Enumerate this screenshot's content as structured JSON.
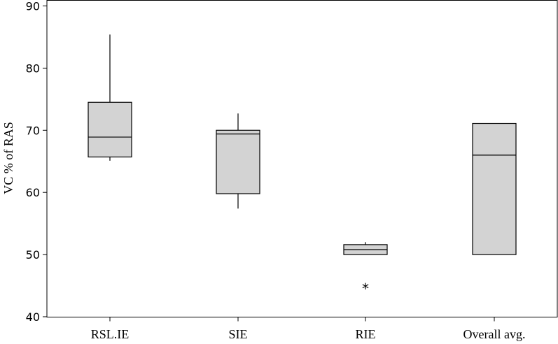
{
  "chart_data": {
    "type": "boxplot",
    "title": "",
    "xlabel": "",
    "ylabel": "VC % of RAS",
    "ylim": [
      40,
      90
    ],
    "yticks": [
      40,
      50,
      60,
      70,
      80,
      90
    ],
    "grid": false,
    "box_fill": "#d3d3d3",
    "categories": [
      "RSL.IE",
      "SIE",
      "RIE",
      "Overall avg."
    ],
    "boxes": [
      {
        "category": "RSL.IE",
        "whisker_low": 65.1,
        "q1": 65.7,
        "median": 68.9,
        "q3": 74.5,
        "whisker_high": 85.4,
        "outliers": []
      },
      {
        "category": "SIE",
        "whisker_low": 57.4,
        "q1": 59.8,
        "median": 69.4,
        "q3": 70.0,
        "whisker_high": 72.7,
        "outliers": []
      },
      {
        "category": "RIE",
        "whisker_low": 50.0,
        "q1": 50.0,
        "median": 50.8,
        "q3": 51.6,
        "whisker_high": 52.0,
        "outliers": [
          44.7
        ]
      },
      {
        "category": "Overall avg.",
        "whisker_low": 50.0,
        "q1": 50.0,
        "median": 66.0,
        "q3": 71.1,
        "whisker_high": 71.1,
        "outliers": []
      }
    ]
  }
}
